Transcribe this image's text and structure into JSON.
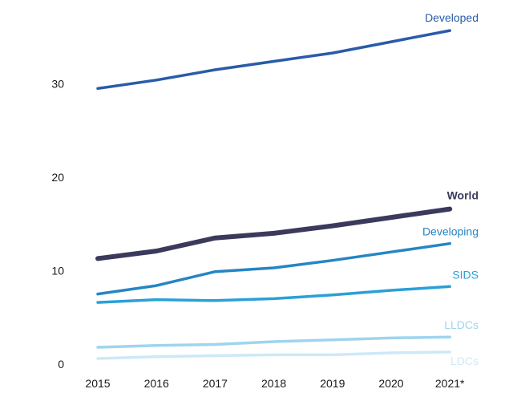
{
  "chart_data": {
    "type": "line",
    "title": "",
    "xlabel": "",
    "ylabel": "",
    "categories": [
      "2015",
      "2016",
      "2017",
      "2018",
      "2019",
      "2020",
      "2021*"
    ],
    "ylim": [
      0,
      36
    ],
    "yticks": [
      0,
      10,
      20,
      30
    ],
    "grid": false,
    "legend": "direct labels at line ends",
    "series": [
      {
        "name": "Developed",
        "color": "#2a5ba8",
        "bold": false,
        "values": [
          29.5,
          30.4,
          31.5,
          32.4,
          33.3,
          34.5,
          35.7
        ]
      },
      {
        "name": "World",
        "color": "#3b3a5c",
        "bold": true,
        "values": [
          11.3,
          12.1,
          13.5,
          14.0,
          14.8,
          15.7,
          16.6
        ]
      },
      {
        "name": "Developing",
        "color": "#2585c4",
        "bold": false,
        "values": [
          7.5,
          8.4,
          9.9,
          10.3,
          11.1,
          12.0,
          12.9
        ]
      },
      {
        "name": "SIDS",
        "color": "#2aa0d8",
        "bold": false,
        "values": [
          6.6,
          6.9,
          6.8,
          7.0,
          7.4,
          7.9,
          8.3
        ]
      },
      {
        "name": "LLDCs",
        "color": "#9fd4ee",
        "bold": false,
        "values": [
          1.8,
          2.0,
          2.1,
          2.4,
          2.6,
          2.8,
          2.9
        ]
      },
      {
        "name": "LDCs",
        "color": "#cde9f7",
        "bold": false,
        "values": [
          0.6,
          0.8,
          0.9,
          1.0,
          1.0,
          1.2,
          1.3
        ]
      }
    ]
  }
}
